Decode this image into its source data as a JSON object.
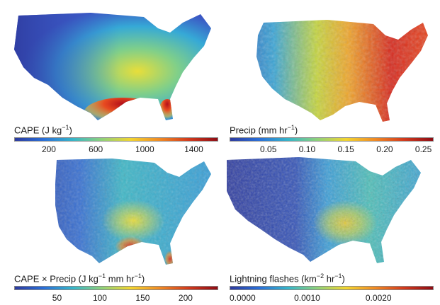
{
  "panels": [
    {
      "id": "cape",
      "label_main": "CAPE (J kg",
      "label_sup": "−1",
      "label_tail": ")",
      "ticks": [
        "200",
        "600",
        "1000",
        "1400"
      ],
      "colormap": "parula-jet"
    },
    {
      "id": "precip",
      "label_main": "Precip (mm hr",
      "label_sup": "−1",
      "label_tail": ")",
      "ticks": [
        "0.05",
        "0.10",
        "0.15",
        "0.20",
        "0.25"
      ],
      "colormap": "parula-jet"
    },
    {
      "id": "cape-precip",
      "label_main": "CAPE × Precip (J kg",
      "label_sup": "−1",
      "label_mid": " mm hr",
      "label_sup2": "−1",
      "label_tail": ")",
      "ticks": [
        "50",
        "100",
        "150",
        "200"
      ],
      "colormap": "parula-jet"
    },
    {
      "id": "lightning",
      "label_main": "Lightning flashes (km",
      "label_sup": "−2",
      "label_mid": " hr",
      "label_sup2": "−1",
      "label_tail": ")",
      "ticks": [
        "0.0000",
        "0.0010",
        "0.0020"
      ],
      "colormap": "parula-jet"
    }
  ],
  "colors": {
    "low": "#2c3a9e",
    "mid": "#36b5c9",
    "high": "#f2d530",
    "top": "#b5101a"
  }
}
